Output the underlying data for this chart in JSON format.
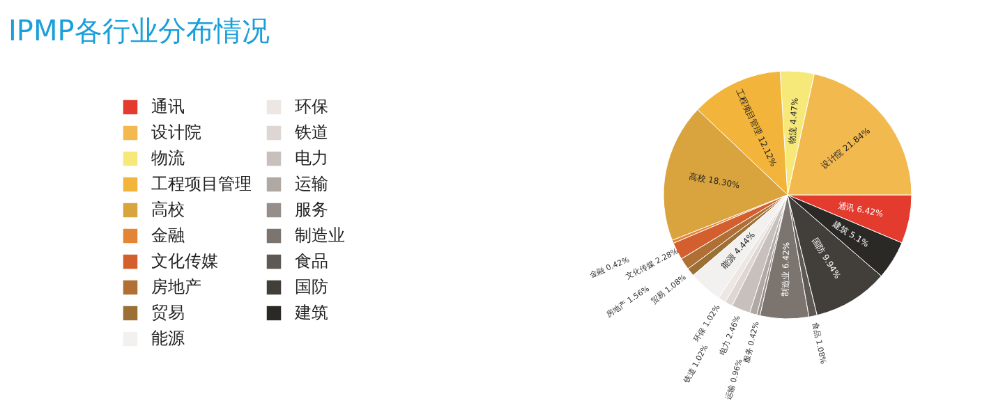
{
  "chart_data": {
    "type": "pie",
    "title": "IPMP各行业分布情况",
    "categories": [
      "通讯",
      "设计院",
      "物流",
      "工程项目管理",
      "高校",
      "金融",
      "文化传媒",
      "房地产",
      "贸易",
      "能源",
      "环保",
      "铁道",
      "电力",
      "运输",
      "服务",
      "制造业",
      "食品",
      "国防",
      "建筑"
    ],
    "values": [
      6.42,
      21.84,
      4.47,
      12.12,
      18.3,
      0.42,
      2.28,
      1.56,
      1.08,
      4.44,
      1.02,
      1.02,
      2.46,
      0.96,
      0.42,
      6.42,
      1.08,
      9.94,
      5.1
    ],
    "value_labels": [
      "6.42%",
      "21.84%",
      "4.47%",
      "12.12%",
      "18.30%",
      "0.42%",
      "2.28%",
      "1.56%",
      "1.08%",
      "4.44%",
      "1.02%",
      "1.02%",
      "2.46%",
      "0.96%",
      "0.42%",
      "6.42%",
      "1.08%",
      "9.94%",
      "5.1%"
    ],
    "colors": [
      "#e33b2e",
      "#f2b94e",
      "#f7e87a",
      "#f2b43a",
      "#d9a43e",
      "#e38534",
      "#d45f2e",
      "#b06f34",
      "#9c6f35",
      "#f2f1ef",
      "#ede6e3",
      "#ddd6d3",
      "#c8c0bc",
      "#b0a8a3",
      "#958e8a",
      "#7b746f",
      "#5e5954",
      "#423f3a",
      "#2b2926"
    ],
    "legend": "left"
  }
}
